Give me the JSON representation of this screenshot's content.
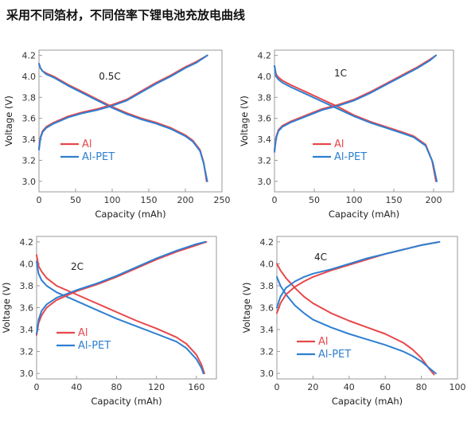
{
  "title": "采用不同箔材，不同倍率下锂电池充放电曲线",
  "colors": {
    "al": "#e8474a",
    "al_pet": "#2e7fd1",
    "frame": "#9a9a9a"
  },
  "chart_data": [
    {
      "type": "line",
      "annotation": "0.5C",
      "xlabel": "Capacity (mAh)",
      "ylabel": "Voltage (V)",
      "xlim": [
        0,
        250
      ],
      "ylim": [
        2.9,
        4.25
      ],
      "xticks": [
        0,
        50,
        100,
        150,
        200,
        250
      ],
      "yticks": [
        3.0,
        3.2,
        3.4,
        3.6,
        3.8,
        4.0,
        4.2
      ],
      "legend": {
        "position": "lower-left"
      },
      "series": [
        {
          "name": "Al",
          "color": "#e8474a",
          "x": [
            0,
            2,
            5,
            10,
            20,
            40,
            60,
            80,
            100,
            120,
            140,
            160,
            180,
            200,
            210,
            220,
            225,
            229
          ],
          "y": [
            4.12,
            4.08,
            4.05,
            4.03,
            4.0,
            3.92,
            3.85,
            3.78,
            3.71,
            3.65,
            3.6,
            3.56,
            3.51,
            3.44,
            3.39,
            3.3,
            3.18,
            3.0
          ]
        },
        {
          "name": "Al-PET",
          "color": "#2e7fd1",
          "x": [
            0,
            2,
            5,
            10,
            20,
            40,
            60,
            80,
            100,
            120,
            140,
            160,
            180,
            200,
            210,
            220,
            225,
            230
          ],
          "y": [
            4.12,
            4.08,
            4.05,
            4.02,
            3.99,
            3.91,
            3.84,
            3.77,
            3.7,
            3.64,
            3.59,
            3.55,
            3.5,
            3.43,
            3.38,
            3.29,
            3.17,
            3.0
          ]
        },
        {
          "name": "Al",
          "color": "#e8474a",
          "x": [
            0,
            2,
            5,
            10,
            20,
            40,
            60,
            80,
            100,
            120,
            140,
            160,
            180,
            200,
            215,
            230
          ],
          "y": [
            3.32,
            3.42,
            3.48,
            3.52,
            3.56,
            3.62,
            3.66,
            3.69,
            3.73,
            3.78,
            3.86,
            3.94,
            4.01,
            4.09,
            4.14,
            4.2
          ]
        },
        {
          "name": "Al-PET",
          "color": "#2e7fd1",
          "x": [
            0,
            2,
            5,
            10,
            20,
            40,
            60,
            80,
            100,
            120,
            140,
            160,
            180,
            200,
            215,
            230
          ],
          "y": [
            3.3,
            3.41,
            3.47,
            3.51,
            3.55,
            3.61,
            3.65,
            3.68,
            3.72,
            3.77,
            3.85,
            3.93,
            4.0,
            4.08,
            4.13,
            4.2
          ]
        }
      ]
    },
    {
      "type": "line",
      "annotation": "1C",
      "xlabel": "Capacity (mAh)",
      "ylabel": "Voltage (V)",
      "xlim": [
        0,
        225
      ],
      "ylim": [
        2.9,
        4.25
      ],
      "xticks": [
        0,
        50,
        100,
        150,
        200
      ],
      "yticks": [
        3.0,
        3.2,
        3.4,
        3.6,
        3.8,
        4.0,
        4.2
      ],
      "legend": {
        "position": "lower-left"
      },
      "series": [
        {
          "name": "Al",
          "color": "#e8474a",
          "x": [
            0,
            2,
            5,
            10,
            20,
            40,
            60,
            80,
            100,
            120,
            140,
            160,
            175,
            190,
            198,
            203
          ],
          "y": [
            4.1,
            4.02,
            3.99,
            3.96,
            3.92,
            3.85,
            3.78,
            3.71,
            3.63,
            3.57,
            3.52,
            3.47,
            3.43,
            3.35,
            3.2,
            3.0
          ]
        },
        {
          "name": "Al-PET",
          "color": "#2e7fd1",
          "x": [
            0,
            2,
            5,
            10,
            20,
            40,
            60,
            80,
            100,
            120,
            140,
            160,
            175,
            190,
            199,
            204
          ],
          "y": [
            4.1,
            4.0,
            3.97,
            3.94,
            3.9,
            3.83,
            3.76,
            3.69,
            3.62,
            3.56,
            3.51,
            3.46,
            3.42,
            3.34,
            3.18,
            3.0
          ]
        },
        {
          "name": "Al",
          "color": "#e8474a",
          "x": [
            0,
            2,
            5,
            10,
            20,
            40,
            60,
            80,
            100,
            120,
            140,
            160,
            180,
            195,
            203
          ],
          "y": [
            3.3,
            3.42,
            3.49,
            3.53,
            3.57,
            3.63,
            3.69,
            3.73,
            3.78,
            3.85,
            3.93,
            4.01,
            4.09,
            4.16,
            4.2
          ]
        },
        {
          "name": "Al-PET",
          "color": "#2e7fd1",
          "x": [
            0,
            2,
            5,
            10,
            20,
            40,
            60,
            80,
            100,
            120,
            140,
            160,
            180,
            195,
            203
          ],
          "y": [
            3.28,
            3.41,
            3.48,
            3.52,
            3.56,
            3.62,
            3.68,
            3.72,
            3.77,
            3.84,
            3.92,
            4.0,
            4.08,
            4.15,
            4.2
          ]
        }
      ]
    },
    {
      "type": "line",
      "annotation": "2C",
      "xlabel": "Capacity (mAh)",
      "ylabel": "Voltage (V)",
      "xlim": [
        0,
        180
      ],
      "ylim": [
        2.95,
        4.25
      ],
      "xticks": [
        0,
        40,
        80,
        120,
        160
      ],
      "yticks": [
        3.0,
        3.2,
        3.4,
        3.6,
        3.8,
        4.0,
        4.2
      ],
      "legend": {
        "position": "lower-left"
      },
      "series": [
        {
          "name": "Al",
          "color": "#e8474a",
          "x": [
            0,
            2,
            5,
            10,
            20,
            40,
            60,
            80,
            100,
            120,
            140,
            150,
            160,
            165,
            168
          ],
          "y": [
            4.08,
            3.98,
            3.93,
            3.87,
            3.8,
            3.72,
            3.64,
            3.56,
            3.48,
            3.41,
            3.33,
            3.27,
            3.17,
            3.08,
            3.0
          ]
        },
        {
          "name": "Al-PET",
          "color": "#2e7fd1",
          "x": [
            0,
            2,
            5,
            10,
            20,
            40,
            60,
            80,
            100,
            120,
            140,
            150,
            160,
            165,
            167
          ],
          "y": [
            4.02,
            3.91,
            3.85,
            3.8,
            3.74,
            3.66,
            3.58,
            3.5,
            3.43,
            3.36,
            3.29,
            3.23,
            3.13,
            3.05,
            3.0
          ]
        },
        {
          "name": "Al",
          "color": "#e8474a",
          "x": [
            0,
            2,
            5,
            10,
            20,
            40,
            60,
            80,
            100,
            120,
            140,
            160,
            170
          ],
          "y": [
            3.35,
            3.46,
            3.53,
            3.6,
            3.67,
            3.75,
            3.81,
            3.88,
            3.96,
            4.04,
            4.11,
            4.17,
            4.2
          ]
        },
        {
          "name": "Al-PET",
          "color": "#2e7fd1",
          "x": [
            0,
            2,
            5,
            10,
            20,
            40,
            60,
            80,
            100,
            120,
            140,
            160,
            169
          ],
          "y": [
            3.36,
            3.49,
            3.57,
            3.63,
            3.69,
            3.76,
            3.82,
            3.89,
            3.97,
            4.05,
            4.12,
            4.18,
            4.2
          ]
        }
      ]
    },
    {
      "type": "line",
      "annotation": "4C",
      "xlabel": "Capacity (mAh)",
      "ylabel": "Voltage (V)",
      "xlim": [
        0,
        100
      ],
      "ylim": [
        2.95,
        4.25
      ],
      "xticks": [
        0,
        20,
        40,
        60,
        80,
        100
      ],
      "yticks": [
        3.0,
        3.2,
        3.4,
        3.6,
        3.8,
        4.0,
        4.2
      ],
      "legend": {
        "position": "lower-left"
      },
      "series": [
        {
          "name": "Al",
          "color": "#e8474a",
          "x": [
            0,
            2,
            5,
            10,
            15,
            20,
            30,
            40,
            50,
            60,
            70,
            75,
            80,
            84,
            87
          ],
          "y": [
            4.0,
            3.94,
            3.87,
            3.78,
            3.7,
            3.64,
            3.55,
            3.48,
            3.42,
            3.36,
            3.28,
            3.22,
            3.14,
            3.05,
            2.99
          ]
        },
        {
          "name": "Al-PET",
          "color": "#2e7fd1",
          "x": [
            0,
            2,
            5,
            10,
            15,
            20,
            30,
            40,
            50,
            60,
            70,
            75,
            80,
            85,
            88
          ],
          "y": [
            3.88,
            3.8,
            3.72,
            3.62,
            3.55,
            3.49,
            3.42,
            3.36,
            3.31,
            3.26,
            3.2,
            3.16,
            3.11,
            3.04,
            3.0
          ]
        },
        {
          "name": "Al",
          "color": "#e8474a",
          "x": [
            0,
            2,
            5,
            10,
            15,
            20,
            30,
            40,
            50,
            60,
            70,
            80,
            90
          ],
          "y": [
            3.55,
            3.64,
            3.72,
            3.79,
            3.84,
            3.88,
            3.94,
            3.99,
            4.04,
            4.09,
            4.13,
            4.17,
            4.2
          ]
        },
        {
          "name": "Al-PET",
          "color": "#2e7fd1",
          "x": [
            0,
            2,
            5,
            10,
            15,
            20,
            30,
            40,
            50,
            60,
            70,
            80,
            90
          ],
          "y": [
            3.6,
            3.7,
            3.78,
            3.84,
            3.88,
            3.91,
            3.95,
            4.0,
            4.05,
            4.09,
            4.13,
            4.17,
            4.2
          ]
        }
      ]
    }
  ]
}
